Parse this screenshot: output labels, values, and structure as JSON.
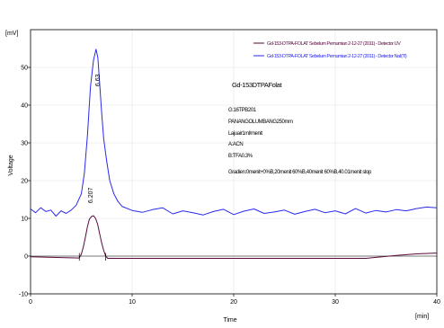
{
  "chart_data": {
    "type": "line",
    "xlabel": "Time",
    "ylabel": "Voltage",
    "x_unit": "[min]",
    "y_unit": "[mV]",
    "xlim": [
      0,
      40
    ],
    "ylim": [
      -10,
      60
    ],
    "x_ticks": [
      0,
      10,
      20,
      30,
      40
    ],
    "y_ticks": [
      -10,
      0,
      10,
      20,
      30,
      40,
      50
    ],
    "legend_position": "top-right",
    "info_lines": [
      "Gd-153DTPAFolat",
      "G:16TPB201",
      "PANANGOLUMBANG250mm",
      "Lajuair1ml/menit",
      "A:ACN",
      "B:TFA0.3%",
      "Gradien:0menit+0%B,20menit 60%B,40menit 60%B,40.01menit stop"
    ],
    "series": [
      {
        "name": "Gd-153-DTPA-FOLAT Sebelum Pemurnian 2-12-27 (2011) - Detector UV",
        "color": "#5a0a3c",
        "x": [
          0,
          4.8,
          5.0,
          5.2,
          5.4,
          5.6,
          5.8,
          6.0,
          6.207,
          6.4,
          6.6,
          6.8,
          7.0,
          7.2,
          7.4,
          7.6,
          7.8,
          8,
          10,
          20,
          30,
          33,
          36,
          38,
          40
        ],
        "y": [
          -0.2,
          -0.5,
          0.5,
          2.5,
          5.0,
          7.8,
          9.8,
          10.5,
          10.7,
          10.0,
          8.5,
          6.0,
          3.5,
          1.5,
          0.0,
          -0.6,
          -0.6,
          -0.6,
          -0.6,
          -0.6,
          -0.6,
          -0.6,
          0.2,
          0.6,
          0.8
        ]
      },
      {
        "name": "Gd-153-DTPA-FOLAT Sebelum Pemurnian 2-12-27 (2011) - Detector NaI(Tl)",
        "color": "#2a2aee",
        "x": [
          0,
          0.5,
          1,
          1.5,
          2,
          2.5,
          3,
          3.5,
          4,
          4.5,
          5,
          5.3,
          5.6,
          5.9,
          6.2,
          6.45,
          6.63,
          6.8,
          7.0,
          7.2,
          7.5,
          7.8,
          8.2,
          8.6,
          9,
          10,
          11,
          12,
          13,
          14,
          15,
          16,
          17,
          18,
          19,
          20,
          21,
          22,
          23,
          24,
          25,
          26,
          27,
          28,
          29,
          30,
          31,
          32,
          33,
          34,
          35,
          36,
          37,
          38,
          39,
          40
        ],
        "y": [
          12.5,
          11.5,
          12.8,
          11.8,
          12.2,
          10.6,
          12.0,
          11.3,
          12.2,
          13.5,
          16.5,
          22,
          32,
          45,
          52,
          54.8,
          52.5,
          46,
          38,
          31,
          25,
          20,
          16.5,
          14.5,
          13.2,
          12.1,
          11.6,
          12.3,
          12.8,
          11.2,
          12.0,
          11.5,
          10.9,
          11.8,
          12.4,
          11.0,
          11.9,
          12.5,
          11.3,
          11.7,
          12.2,
          11.1,
          11.8,
          12.4,
          11.5,
          12.0,
          11.2,
          12.6,
          11.4,
          12.1,
          11.7,
          12.3,
          12.0,
          12.6,
          13.0,
          12.8
        ]
      }
    ],
    "annotations": [
      {
        "text": "6.207",
        "x": 6.207,
        "series": 0
      },
      {
        "text": "6.63",
        "x": 6.63,
        "series": 1
      }
    ]
  }
}
